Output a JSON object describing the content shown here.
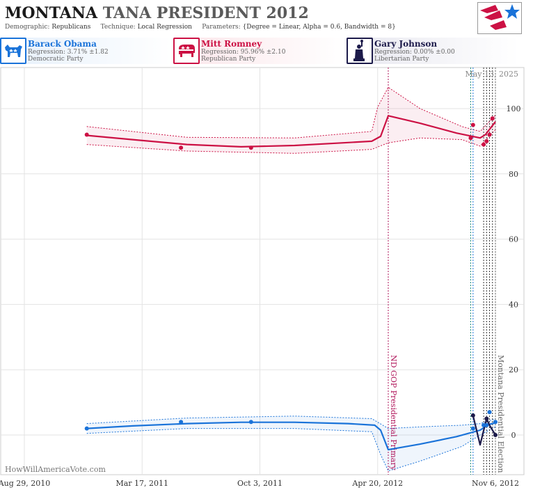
{
  "header": {
    "title_part1": "MONTANA",
    "title_part2": "TANA PRESIDENT 2012",
    "demographic_label": "Demographic:",
    "demographic_value": "Republicans",
    "technique_label": "Technique:",
    "technique_value": "Local Regression",
    "parameters_label": "Parameters:",
    "parameters_value": "{Degree = Linear, Alpha = 0.6, Bandwidth = 8}"
  },
  "candidates": [
    {
      "name": "Barack Obama",
      "regression": "Regression: 3.71% ±1.82",
      "party": "Democratic Party",
      "color": "#1a73d9",
      "icon": "donkey-icon"
    },
    {
      "name": "Mitt Romney",
      "regression": "Regression: 95.96% ±2.10",
      "party": "Republican Party",
      "color": "#cc1144",
      "icon": "elephant-icon"
    },
    {
      "name": "Gary Johnson",
      "regression": "Regression: 0.00% ±0.00",
      "party": "Libertarian Party",
      "color": "#1c1a4a",
      "icon": "statue-of-liberty-icon"
    }
  ],
  "watermark": "HowWillAmericaVote.com",
  "chart_data": {
    "type": "line",
    "date_label": "May 13, 2025",
    "x_ticks": [
      "Aug 29, 2010",
      "Mar 17, 2011",
      "Oct 3, 2011",
      "Apr 20, 2012",
      "Nov 6, 2012"
    ],
    "y_ticks": [
      0,
      20,
      40,
      60,
      80,
      100
    ],
    "ylim": [
      -13,
      112
    ],
    "xlim": [
      "2010-08-29",
      "2012-11-06"
    ],
    "grid": true,
    "annotations": [
      {
        "date": "2012-05-08",
        "label": "ND GOP Presidential Primary",
        "color": "#b0155a"
      },
      {
        "date": "2012-11-06",
        "label": "Montana Presidential Election",
        "color": "#666666"
      }
    ],
    "poll_lines": [
      {
        "date": "2012-09-25",
        "color": "#1a8a7a"
      },
      {
        "date": "2012-09-29",
        "color": "#1a73d9"
      },
      {
        "date": "2012-10-17",
        "color": "#333333"
      },
      {
        "date": "2012-10-22",
        "color": "#333333"
      },
      {
        "date": "2012-10-27",
        "color": "#333333"
      },
      {
        "date": "2012-11-01",
        "color": "#333333"
      }
    ],
    "series": [
      {
        "name": "Mitt Romney",
        "color": "#cc1144",
        "trend": [
          {
            "x": "2010-12-13",
            "y": 91.8
          },
          {
            "x": "2011-03-01",
            "y": 90.5
          },
          {
            "x": "2011-06-01",
            "y": 89.0
          },
          {
            "x": "2011-09-01",
            "y": 88.3
          },
          {
            "x": "2011-12-01",
            "y": 88.7
          },
          {
            "x": "2012-03-01",
            "y": 89.6
          },
          {
            "x": "2012-04-10",
            "y": 90.0
          },
          {
            "x": "2012-04-25",
            "y": 91.5
          },
          {
            "x": "2012-05-08",
            "y": 97.8
          },
          {
            "x": "2012-07-01",
            "y": 95.5
          },
          {
            "x": "2012-09-01",
            "y": 92.5
          },
          {
            "x": "2012-10-11",
            "y": 91.0
          },
          {
            "x": "2012-10-20",
            "y": 92.0
          },
          {
            "x": "2012-11-06",
            "y": 95.96
          }
        ],
        "upper": [
          {
            "x": "2010-12-13",
            "y": 94.5
          },
          {
            "x": "2011-06-01",
            "y": 91.2
          },
          {
            "x": "2011-12-01",
            "y": 91.0
          },
          {
            "x": "2012-04-10",
            "y": 93.0
          },
          {
            "x": "2012-04-20",
            "y": 100.5
          },
          {
            "x": "2012-05-08",
            "y": 106.5
          },
          {
            "x": "2012-07-01",
            "y": 100.0
          },
          {
            "x": "2012-09-10",
            "y": 94.5
          },
          {
            "x": "2012-10-11",
            "y": 93.0
          },
          {
            "x": "2012-11-06",
            "y": 98.0
          }
        ],
        "lower": [
          {
            "x": "2010-12-13",
            "y": 89.0
          },
          {
            "x": "2011-06-01",
            "y": 87.0
          },
          {
            "x": "2011-12-01",
            "y": 86.3
          },
          {
            "x": "2012-04-10",
            "y": 87.5
          },
          {
            "x": "2012-05-08",
            "y": 89.5
          },
          {
            "x": "2012-07-01",
            "y": 91.0
          },
          {
            "x": "2012-09-10",
            "y": 90.5
          },
          {
            "x": "2012-10-11",
            "y": 88.5
          },
          {
            "x": "2012-11-06",
            "y": 93.5
          }
        ],
        "points": [
          {
            "x": "2010-12-13",
            "y": 92
          },
          {
            "x": "2011-05-22",
            "y": 88
          },
          {
            "x": "2011-09-18",
            "y": 88
          },
          {
            "x": "2012-09-25",
            "y": 91
          },
          {
            "x": "2012-09-29",
            "y": 95
          },
          {
            "x": "2012-10-17",
            "y": 89
          },
          {
            "x": "2012-10-22",
            "y": 90
          },
          {
            "x": "2012-10-27",
            "y": 92
          },
          {
            "x": "2012-11-01",
            "y": 97
          }
        ]
      },
      {
        "name": "Barack Obama",
        "color": "#1a73d9",
        "trend": [
          {
            "x": "2010-12-13",
            "y": 2.0
          },
          {
            "x": "2011-03-01",
            "y": 2.8
          },
          {
            "x": "2011-06-01",
            "y": 3.5
          },
          {
            "x": "2011-09-01",
            "y": 3.9
          },
          {
            "x": "2011-12-01",
            "y": 3.9
          },
          {
            "x": "2012-03-01",
            "y": 3.5
          },
          {
            "x": "2012-04-15",
            "y": 3.0
          },
          {
            "x": "2012-04-25",
            "y": 1.5
          },
          {
            "x": "2012-05-08",
            "y": -4.5
          },
          {
            "x": "2012-07-01",
            "y": -2.8
          },
          {
            "x": "2012-09-01",
            "y": -0.5
          },
          {
            "x": "2012-10-11",
            "y": 1.5
          },
          {
            "x": "2012-10-25",
            "y": 3.2
          },
          {
            "x": "2012-11-06",
            "y": 3.71
          }
        ],
        "upper": [
          {
            "x": "2010-12-13",
            "y": 3.5
          },
          {
            "x": "2011-06-01",
            "y": 5.2
          },
          {
            "x": "2011-12-01",
            "y": 5.8
          },
          {
            "x": "2012-04-10",
            "y": 5.0
          },
          {
            "x": "2012-05-08",
            "y": 2.0
          },
          {
            "x": "2012-07-01",
            "y": 2.5
          },
          {
            "x": "2012-09-10",
            "y": 3.0
          },
          {
            "x": "2012-10-11",
            "y": 3.5
          },
          {
            "x": "2012-11-06",
            "y": 5.0
          }
        ],
        "lower": [
          {
            "x": "2010-12-13",
            "y": 0.5
          },
          {
            "x": "2011-06-01",
            "y": 2.0
          },
          {
            "x": "2011-12-01",
            "y": 2.0
          },
          {
            "x": "2012-04-10",
            "y": 1.0
          },
          {
            "x": "2012-04-25",
            "y": -6.0
          },
          {
            "x": "2012-05-08",
            "y": -11.0
          },
          {
            "x": "2012-07-01",
            "y": -8.0
          },
          {
            "x": "2012-09-10",
            "y": -3.5
          },
          {
            "x": "2012-10-11",
            "y": 0.0
          },
          {
            "x": "2012-11-06",
            "y": 2.5
          }
        ],
        "points": [
          {
            "x": "2010-12-13",
            "y": 2
          },
          {
            "x": "2011-05-22",
            "y": 4
          },
          {
            "x": "2011-09-18",
            "y": 4
          },
          {
            "x": "2012-09-29",
            "y": 2
          },
          {
            "x": "2012-10-17",
            "y": 3
          },
          {
            "x": "2012-10-22",
            "y": 3
          },
          {
            "x": "2012-10-27",
            "y": 7
          },
          {
            "x": "2012-11-06",
            "y": 4
          }
        ]
      },
      {
        "name": "Gary Johnson",
        "color": "#1c1a4a",
        "trend": [
          {
            "x": "2012-09-29",
            "y": 6
          },
          {
            "x": "2012-10-11",
            "y": -3
          },
          {
            "x": "2012-10-22",
            "y": 5
          },
          {
            "x": "2012-10-27",
            "y": 3
          },
          {
            "x": "2012-11-06",
            "y": 0
          }
        ],
        "upper": [],
        "lower": [],
        "points": [
          {
            "x": "2012-09-29",
            "y": 6
          },
          {
            "x": "2012-10-22",
            "y": 5
          },
          {
            "x": "2012-11-06",
            "y": 0
          }
        ]
      }
    ]
  }
}
